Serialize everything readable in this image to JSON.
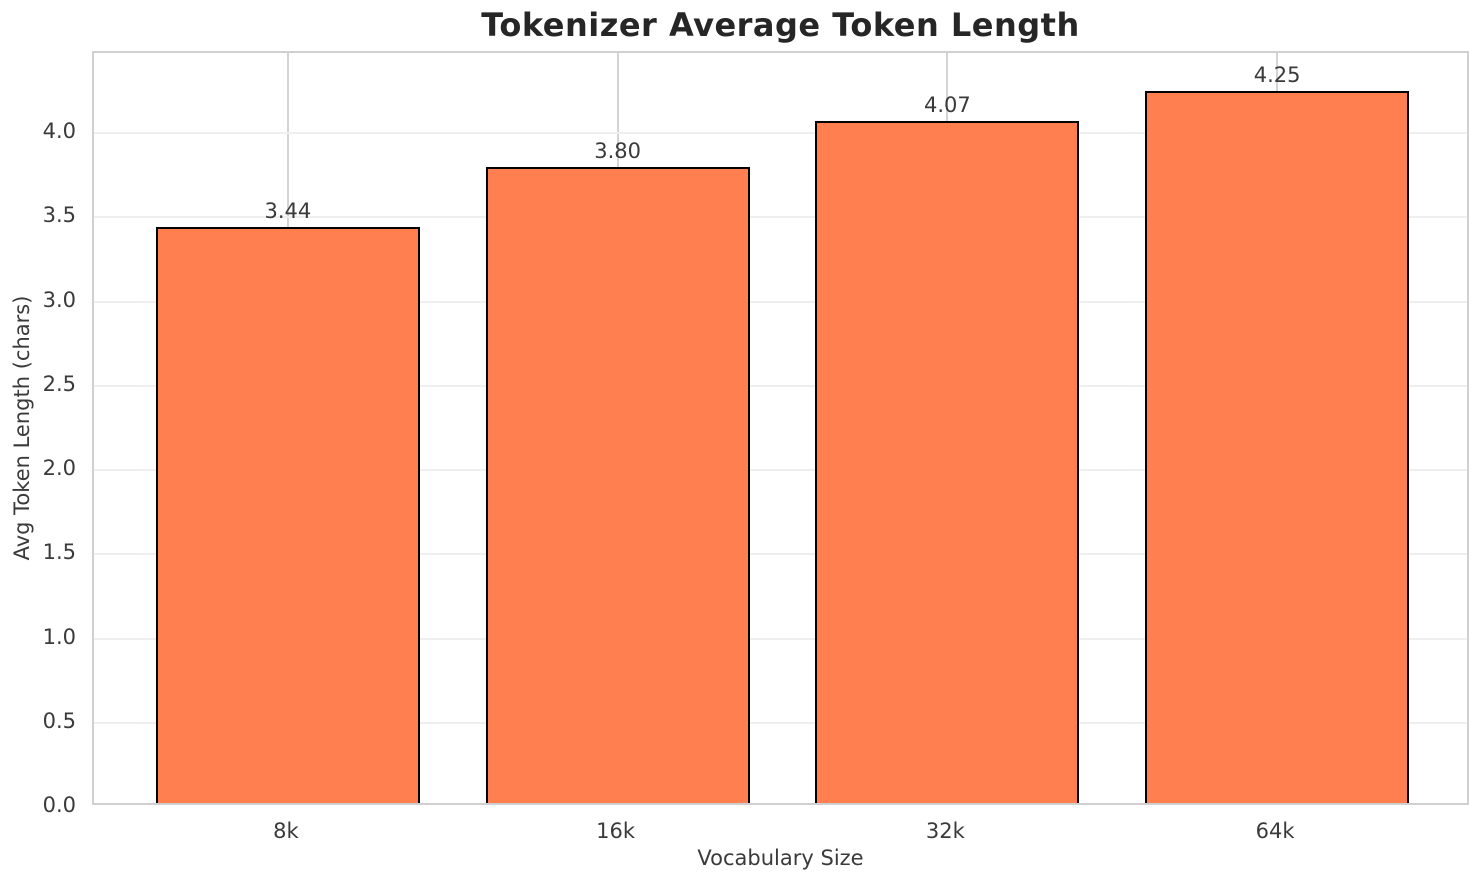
{
  "chart_data": {
    "type": "bar",
    "title": "Tokenizer Average Token Length",
    "xlabel": "Vocabulary Size",
    "ylabel": "Avg Token Length (chars)",
    "categories": [
      "8k",
      "16k",
      "32k",
      "64k"
    ],
    "values": [
      3.44,
      3.8,
      4.07,
      4.25
    ],
    "value_labels": [
      "3.44",
      "3.80",
      "4.07",
      "4.25"
    ],
    "yticks": [
      0.0,
      0.5,
      1.0,
      1.5,
      2.0,
      2.5,
      3.0,
      3.5,
      4.0
    ],
    "ytick_labels": [
      "0.0",
      "0.5",
      "1.0",
      "1.5",
      "2.0",
      "2.5",
      "3.0",
      "3.5",
      "4.0"
    ],
    "ylim": [
      0,
      4.475
    ],
    "grid": true,
    "legend_position": "none",
    "colors": {
      "bar_fill": "#FF7F50",
      "bar_edge": "#000000",
      "grid_horizontal": "#efefef",
      "grid_vertical": "#d4d4d4",
      "spine": "#d0d0d0",
      "title_text": "#262626",
      "tick_text": "#3a3a3a",
      "background": "#ffffff"
    }
  }
}
